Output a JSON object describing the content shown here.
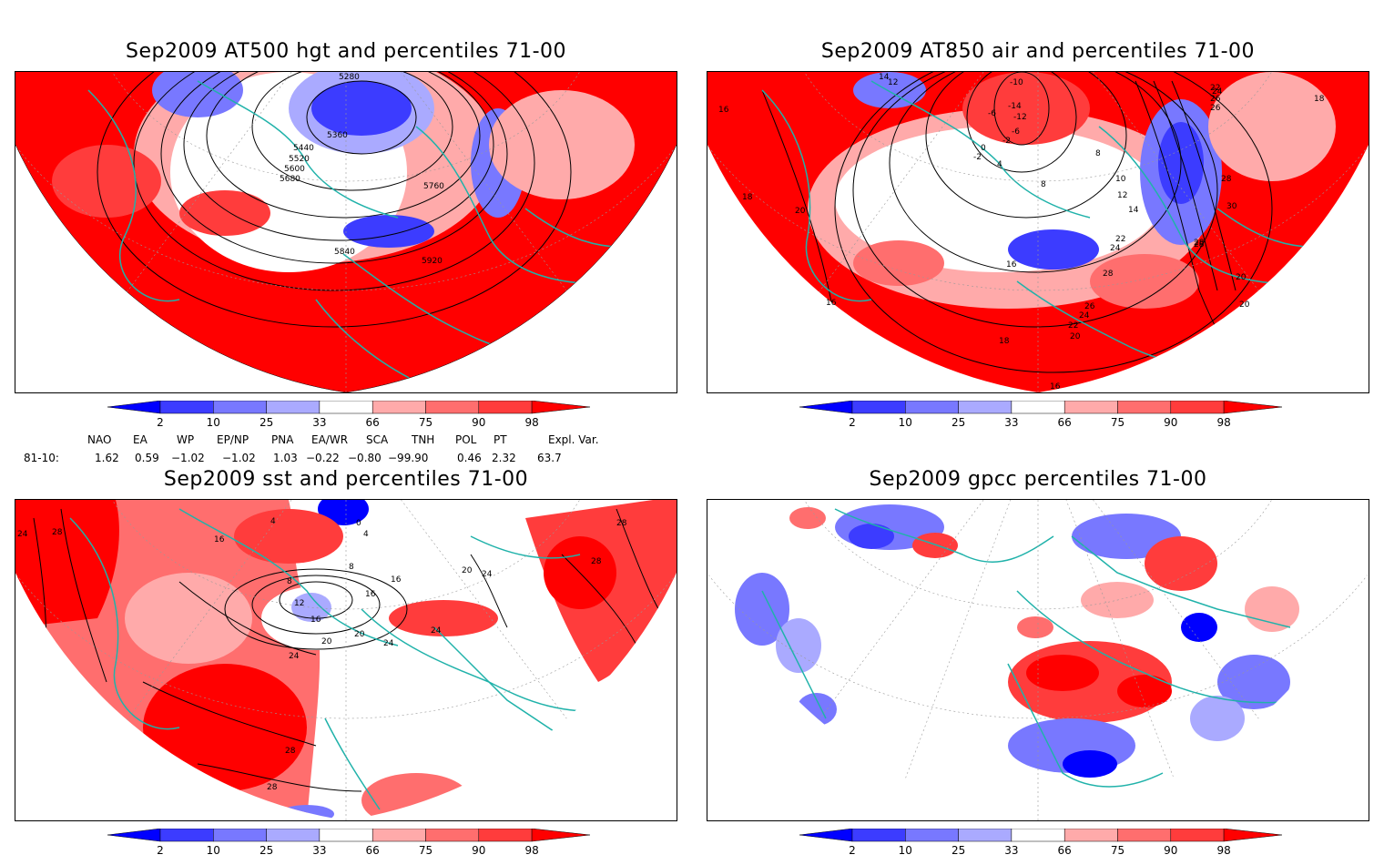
{
  "panels": [
    {
      "id": "hgt",
      "title": "Sep2009 AT500 hgt and percentiles 71-00",
      "contour_labels": [
        "5280",
        "5360",
        "5440",
        "5520",
        "5600",
        "5680",
        "5760",
        "5840",
        "5920"
      ]
    },
    {
      "id": "air",
      "title": "Sep2009 AT850 air and percentiles 71-00",
      "contour_labels": [
        "14",
        "12",
        "16",
        "-10",
        "-6",
        "-14",
        "-12",
        "-6",
        "-2",
        "0",
        "-2",
        "4",
        "8",
        "8",
        "10",
        "12",
        "14",
        "22",
        "24",
        "24",
        "26",
        "22",
        "26",
        "28",
        "28",
        "30",
        "28",
        "18",
        "20",
        "18",
        "20",
        "16",
        "16",
        "28",
        "26",
        "24",
        "22",
        "20",
        "18",
        "16",
        "20"
      ]
    },
    {
      "id": "sst",
      "title": "Sep2009 sst and percentiles 71-00",
      "contour_labels": [
        "24",
        "28",
        "16",
        "4",
        "0",
        "4",
        "8",
        "12",
        "16",
        "20",
        "24",
        "24",
        "20",
        "16",
        "28",
        "28",
        "28",
        "20",
        "24",
        "8",
        "16",
        "24",
        "28"
      ]
    },
    {
      "id": "gpcc",
      "title": "Sep2009 gpcc percentiles 71-00",
      "contour_labels": []
    }
  ],
  "colorbar": {
    "labels": [
      "2",
      "10",
      "25",
      "33",
      "66",
      "75",
      "90",
      "98"
    ],
    "colors": {
      "dark_blue": "#0000ff",
      "blue": "#3c3cff",
      "mid_blue": "#7878ff",
      "light_blue": "#aaaaff",
      "white": "#ffffff",
      "light_red": "#ffaaaa",
      "mid_red": "#ff6e6e",
      "red": "#ff3c3c",
      "dark_red": "#ff0000"
    }
  },
  "indices": {
    "headers": [
      "NAO",
      "EA",
      "WP",
      "EP/NP",
      "PNA",
      "EA/WR",
      "SCA",
      "TNH",
      "POL",
      "PT",
      "Expl. Var."
    ],
    "row_label": "81-10:",
    "values": [
      "1.62",
      "0.59",
      "−1.02",
      "−1.02",
      "1.03",
      "−0.22",
      "−0.80",
      "−99.90",
      "0.46",
      "2.32",
      "63.7"
    ]
  },
  "colors": {
    "coast": "#20b2aa",
    "contour": "#000000",
    "grid": "#999999"
  }
}
